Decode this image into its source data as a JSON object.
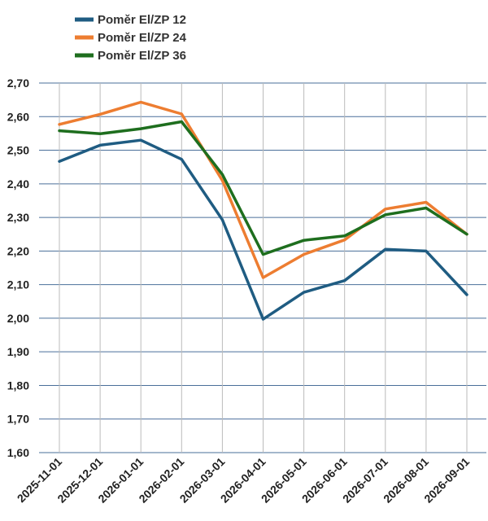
{
  "chart_data": {
    "type": "line",
    "categories": [
      "2025-11-01",
      "2025-12-01",
      "2026-01-01",
      "2026-02-01",
      "2026-03-01",
      "2026-04-01",
      "2026-05-01",
      "2026-06-01",
      "2026-07-01",
      "2026-08-01",
      "2026-09-01"
    ],
    "series": [
      {
        "name": "Poměr El/ZP 12",
        "color": "#1f5c82",
        "values": [
          2.467,
          2.515,
          2.53,
          2.473,
          2.293,
          1.997,
          2.077,
          2.112,
          2.205,
          2.2,
          2.07
        ]
      },
      {
        "name": "Poměr El/ZP 24",
        "color": "#ed7d31",
        "values": [
          2.577,
          2.607,
          2.643,
          2.608,
          2.41,
          2.121,
          2.19,
          2.233,
          2.325,
          2.345,
          2.25
        ]
      },
      {
        "name": "Poměr El/ZP 36",
        "color": "#1e6e1e",
        "values": [
          2.558,
          2.549,
          2.564,
          2.585,
          2.428,
          2.19,
          2.232,
          2.245,
          2.308,
          2.328,
          2.25
        ]
      }
    ],
    "ylim": [
      1.6,
      2.7
    ],
    "yticks": [
      "1,60",
      "1,70",
      "1,80",
      "1,90",
      "2,00",
      "2,10",
      "2,20",
      "2,30",
      "2,40",
      "2,50",
      "2,60",
      "2,70"
    ],
    "grid": true,
    "legend": "top-left"
  }
}
